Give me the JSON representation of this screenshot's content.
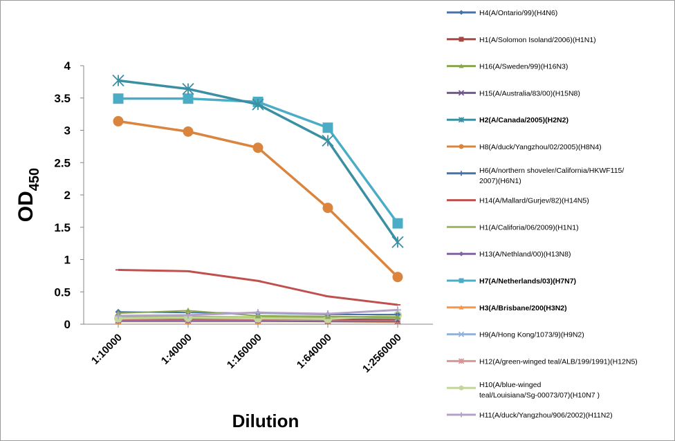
{
  "chart_data": {
    "type": "line",
    "xlabel": "Dilution",
    "ylabel_main": "OD",
    "ylabel_sub": "450",
    "categories": [
      "1:10000",
      "1:40000",
      "1:160000",
      "1:640000",
      "1:2560000"
    ],
    "ylim": [
      0,
      4
    ],
    "yticks": [
      0,
      0.5,
      1,
      1.5,
      2,
      2.5,
      3,
      3.5,
      4
    ],
    "grid": false,
    "legend_position": "right",
    "series": [
      {
        "name": "H4(A/Ontario/99)(H4N6)",
        "color": "#4572A7",
        "marker": "diamond",
        "bold": false,
        "width": 2,
        "size": 4.5,
        "values": [
          0.19,
          0.18,
          0.17,
          0.15,
          0.15
        ]
      },
      {
        "name": "H1(A/Solomon Isoland/2006)(H1N1)",
        "color": "#AA4643",
        "marker": "square",
        "bold": false,
        "width": 2,
        "size": 3.5,
        "values": [
          0.08,
          0.08,
          0.08,
          0.07,
          0.07
        ]
      },
      {
        "name": "H16(A/Sweden/99)(H16N3)",
        "color": "#89A54E",
        "marker": "triangle",
        "bold": false,
        "width": 2,
        "size": 4.5,
        "values": [
          0.17,
          0.21,
          0.13,
          0.12,
          0.11
        ]
      },
      {
        "name": "H15(A/Australia/83/00)(H15N8)",
        "color": "#71588F",
        "marker": "x",
        "bold": false,
        "width": 2,
        "size": 4,
        "values": [
          0.06,
          0.06,
          0.06,
          0.05,
          0.05
        ]
      },
      {
        "name": "H2(A/Canada/2005)(H2N2)",
        "color": "#3A8FA3",
        "marker": "asterisk",
        "bold": true,
        "width": 3.5,
        "size": 8,
        "values": [
          3.77,
          3.64,
          3.4,
          2.84,
          1.27
        ]
      },
      {
        "name": "H8(A/duck/Yangzhou/02/2005)(H8N4)",
        "color": "#DB843D",
        "marker": "circle",
        "bold": false,
        "width": 3.5,
        "size": 7.5,
        "values": [
          3.14,
          2.98,
          2.73,
          1.8,
          0.73
        ]
      },
      {
        "name": "H6(A/northern shoveler/California/HKWF115/2007)(H6N1)",
        "color": "#4572A7",
        "marker": "plus",
        "bold": false,
        "width": 2,
        "size": 4,
        "values": [
          0.1,
          0.1,
          0.1,
          0.09,
          0.09
        ]
      },
      {
        "name": "H14(A/Mallard/Gurjev/82)(H14N5)",
        "color": "#C0504D",
        "marker": "dash",
        "bold": false,
        "width": 3,
        "size": 4,
        "values": [
          0.84,
          0.82,
          0.67,
          0.43,
          0.3
        ]
      },
      {
        "name": "H1(A/Califoria/06/2009)(H1N1)",
        "color": "#9BBB59",
        "marker": "dash",
        "bold": false,
        "width": 2,
        "size": 4,
        "values": [
          0.12,
          0.12,
          0.11,
          0.1,
          0.1
        ]
      },
      {
        "name": "H13(A/Nethland/00)(H13N8)",
        "color": "#8064A2",
        "marker": "diamond",
        "bold": false,
        "width": 2,
        "size": 4,
        "values": [
          0.05,
          0.05,
          0.05,
          0.04,
          0.04
        ]
      },
      {
        "name": "H7(A/Netherlands/03)(H7N7)",
        "color": "#4BACC6",
        "marker": "square",
        "bold": true,
        "width": 3.5,
        "size": 7.5,
        "values": [
          3.49,
          3.49,
          3.44,
          3.04,
          1.56
        ]
      },
      {
        "name": "H3(A/Brisbane/200(H3N2)",
        "color": "#F79646",
        "marker": "triangle",
        "bold": true,
        "width": 2,
        "size": 4.5,
        "values": [
          0.04,
          0.04,
          0.04,
          0.04,
          0.03
        ]
      },
      {
        "name": "H9(A/Hong Kong/1073/9)(H9N2)",
        "color": "#95B3D7",
        "marker": "x",
        "bold": false,
        "width": 2,
        "size": 4,
        "values": [
          0.11,
          0.11,
          0.1,
          0.1,
          0.09
        ]
      },
      {
        "name": "H12(A/green-winged teal/ALB/199/1991)(H12N5)",
        "color": "#D99694",
        "marker": "asterisk",
        "bold": false,
        "width": 2,
        "size": 4,
        "values": [
          0.07,
          0.07,
          0.07,
          0.06,
          0.06
        ]
      },
      {
        "name": "H10(A/blue-winged teal/Louisiana/Sg-00073/07)(H10N7 )",
        "color": "#C3D69B",
        "marker": "circle",
        "bold": false,
        "width": 3,
        "size": 6,
        "values": [
          0.09,
          0.1,
          0.09,
          0.08,
          0.14
        ]
      },
      {
        "name": "H11(A/duck/Yangzhou/906/2002)(H11N2)",
        "color": "#B3A2C7",
        "marker": "plus",
        "bold": false,
        "width": 3,
        "size": 5,
        "values": [
          0.13,
          0.14,
          0.18,
          0.16,
          0.22
        ]
      }
    ]
  }
}
